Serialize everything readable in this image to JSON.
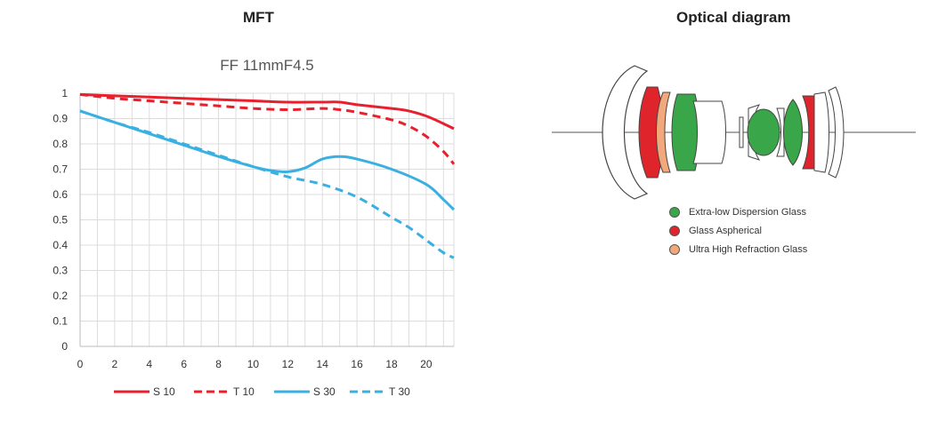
{
  "headings": {
    "mft": "MFT",
    "optical": "Optical diagram"
  },
  "chart_data": {
    "type": "line",
    "title": "FF 11mmF4.5",
    "xlabel": "",
    "ylabel": "",
    "xlim": [
      0,
      21.6
    ],
    "ylim": [
      0,
      1
    ],
    "x_ticks": [
      0,
      2,
      4,
      6,
      8,
      10,
      12,
      14,
      16,
      18,
      20
    ],
    "y_ticks": [
      0,
      0.1,
      0.2,
      0.3,
      0.4,
      0.5,
      0.6,
      0.7,
      0.8,
      0.9,
      1
    ],
    "y_tick_labels": [
      "0",
      "0.1",
      "0.2",
      "0.3",
      "0.4",
      "0.5",
      "0.6",
      "0.7",
      "0.8",
      "0.9",
      "1"
    ],
    "grid": true,
    "legend_position": "bottom",
    "series": [
      {
        "name": "S 10",
        "color": "#e8202e",
        "dash": false,
        "x": [
          0,
          2,
          4,
          6,
          8,
          10,
          12,
          14,
          15,
          16,
          18,
          19,
          20,
          21,
          21.6
        ],
        "y": [
          0.995,
          0.99,
          0.985,
          0.98,
          0.975,
          0.97,
          0.965,
          0.965,
          0.965,
          0.955,
          0.94,
          0.93,
          0.91,
          0.88,
          0.86
        ]
      },
      {
        "name": "T 10",
        "color": "#e8202e",
        "dash": true,
        "x": [
          0,
          2,
          4,
          6,
          8,
          10,
          12,
          14,
          15,
          16,
          18,
          19,
          20,
          21,
          21.6
        ],
        "y": [
          0.995,
          0.98,
          0.97,
          0.96,
          0.95,
          0.94,
          0.935,
          0.94,
          0.935,
          0.925,
          0.895,
          0.87,
          0.83,
          0.77,
          0.72
        ]
      },
      {
        "name": "S 30",
        "color": "#3ab0e2",
        "dash": false,
        "x": [
          0,
          2,
          4,
          6,
          8,
          10,
          11,
          12,
          13,
          14,
          15,
          16,
          18,
          20,
          21,
          21.6
        ],
        "y": [
          0.93,
          0.885,
          0.84,
          0.795,
          0.75,
          0.71,
          0.695,
          0.69,
          0.705,
          0.74,
          0.75,
          0.74,
          0.7,
          0.64,
          0.58,
          0.54
        ]
      },
      {
        "name": "T 30",
        "color": "#3ab0e2",
        "dash": true,
        "x": [
          0,
          2,
          4,
          6,
          8,
          10,
          12,
          14,
          16,
          18,
          19,
          20,
          21,
          21.6
        ],
        "y": [
          0.93,
          0.885,
          0.845,
          0.8,
          0.755,
          0.71,
          0.67,
          0.64,
          0.59,
          0.51,
          0.47,
          0.42,
          0.37,
          0.35
        ]
      }
    ]
  },
  "optical_legend": [
    {
      "label": "Extra-low Dispersion Glass",
      "color": "#3aa64a"
    },
    {
      "label": "Glass Aspherical",
      "color": "#e0242c"
    },
    {
      "label": "Ultra High Refraction Glass",
      "color": "#f2a87a"
    }
  ]
}
